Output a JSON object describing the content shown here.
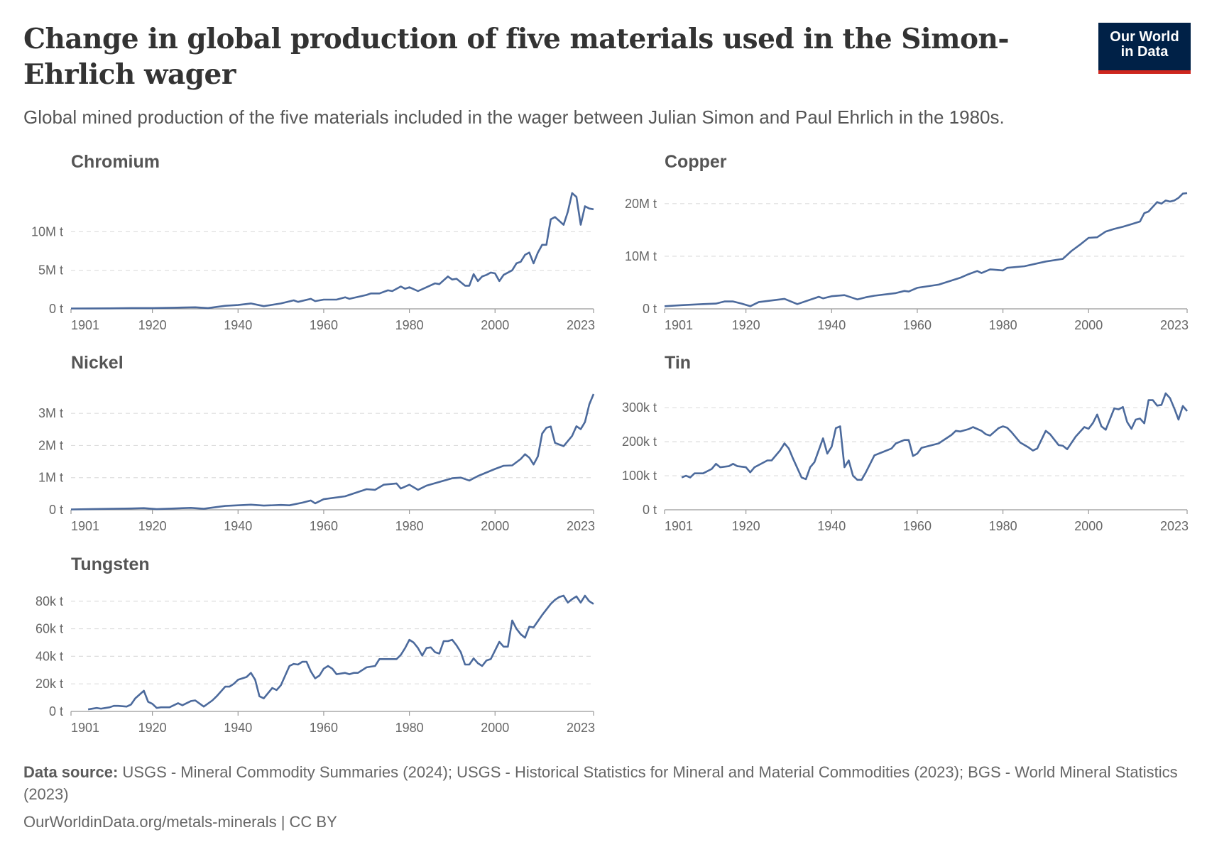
{
  "header": {
    "title": "Change in global production of five materials used in the Simon-Ehrlich wager",
    "subtitle": "Global mined production of the five materials included in the wager between Julian Simon and Paul Ehrlich in the 1980s.",
    "logo": "Our World in Data",
    "logo_line1": "Our World",
    "logo_line2": "in Data"
  },
  "footer": {
    "source_label": "Data source:",
    "source_text": " USGS - Mineral Commodity Summaries (2024); USGS - Historical Statistics for Mineral and Material Commodities (2023); BGS - World Mineral Statistics (2023)",
    "url": "OurWorldinData.org/metals-minerals | CC BY"
  },
  "colors": {
    "line": "#4c6a9c",
    "grid": "#dddddd",
    "logo_bg": "#002147",
    "logo_accent": "#ce261e"
  },
  "chart_data": [
    {
      "type": "line",
      "title": "Chromium",
      "unit": "t",
      "xlim": [
        1901,
        2023
      ],
      "ylim": [
        0,
        15000000
      ],
      "xticks": [
        "1901",
        "1920",
        "1940",
        "1960",
        "1980",
        "2000",
        "2023"
      ],
      "yticks": [
        {
          "value": 0,
          "label": "0 t"
        },
        {
          "value": 5000000,
          "label": "5M t"
        },
        {
          "value": 10000000,
          "label": "10M t"
        }
      ],
      "x": [
        1901,
        1910,
        1915,
        1920,
        1925,
        1930,
        1933,
        1937,
        1940,
        1943,
        1946,
        1950,
        1953,
        1954,
        1957,
        1958,
        1960,
        1963,
        1965,
        1966,
        1970,
        1971,
        1973,
        1975,
        1976,
        1978,
        1979,
        1980,
        1982,
        1984,
        1986,
        1987,
        1989,
        1990,
        1991,
        1993,
        1994,
        1995,
        1996,
        1997,
        1998,
        1999,
        2000,
        2001,
        2002,
        2004,
        2005,
        2006,
        2007,
        2008,
        2009,
        2010,
        2011,
        2012,
        2013,
        2014,
        2016,
        2017,
        2018,
        2019,
        2020,
        2021,
        2022,
        2023
      ],
      "y": [
        50000,
        60000,
        100000,
        100000,
        150000,
        200000,
        100000,
        400000,
        500000,
        700000,
        350000,
        700000,
        1100000,
        900000,
        1300000,
        1000000,
        1200000,
        1200000,
        1500000,
        1300000,
        1800000,
        2000000,
        2000000,
        2400000,
        2300000,
        2900000,
        2600000,
        2800000,
        2300000,
        2800000,
        3300000,
        3200000,
        4200000,
        3800000,
        3900000,
        3000000,
        3000000,
        4500000,
        3600000,
        4200000,
        4400000,
        4700000,
        4600000,
        3600000,
        4400000,
        5000000,
        5900000,
        6100000,
        7000000,
        7300000,
        5900000,
        7300000,
        8300000,
        8300000,
        11600000,
        11900000,
        10900000,
        12600000,
        15000000,
        14500000,
        10900000,
        13300000,
        13000000,
        12900000
      ]
    },
    {
      "type": "line",
      "title": "Copper",
      "unit": "t",
      "xlim": [
        1901,
        2023
      ],
      "ylim": [
        0,
        22000000
      ],
      "xticks": [
        "1901",
        "1920",
        "1940",
        "1960",
        "1980",
        "2000",
        "2023"
      ],
      "yticks": [
        {
          "value": 0,
          "label": "0 t"
        },
        {
          "value": 10000000,
          "label": "10M t"
        },
        {
          "value": 20000000,
          "label": "20M t"
        }
      ],
      "x": [
        1901,
        1905,
        1910,
        1913,
        1915,
        1917,
        1919,
        1921,
        1923,
        1925,
        1929,
        1932,
        1937,
        1938,
        1940,
        1943,
        1946,
        1948,
        1950,
        1955,
        1957,
        1958,
        1960,
        1965,
        1970,
        1972,
        1974,
        1975,
        1977,
        1980,
        1981,
        1985,
        1990,
        1994,
        1996,
        1998,
        2000,
        2002,
        2004,
        2006,
        2008,
        2010,
        2012,
        2013,
        2014,
        2016,
        2017,
        2018,
        2019,
        2020,
        2021,
        2022,
        2023
      ],
      "y": [
        500000,
        700000,
        900000,
        1000000,
        1400000,
        1400000,
        1000000,
        500000,
        1300000,
        1500000,
        1900000,
        900000,
        2300000,
        2000000,
        2400000,
        2600000,
        1800000,
        2200000,
        2500000,
        3000000,
        3400000,
        3300000,
        4000000,
        4600000,
        5900000,
        6600000,
        7200000,
        6800000,
        7500000,
        7300000,
        7800000,
        8100000,
        9000000,
        9500000,
        11000000,
        12200000,
        13500000,
        13600000,
        14700000,
        15200000,
        15600000,
        16100000,
        16600000,
        18200000,
        18500000,
        20300000,
        20000000,
        20600000,
        20400000,
        20600000,
        21100000,
        21900000,
        22000000
      ]
    },
    {
      "type": "line",
      "title": "Nickel",
      "unit": "t",
      "xlim": [
        1901,
        2023
      ],
      "ylim": [
        0,
        3600000
      ],
      "xticks": [
        "1901",
        "1920",
        "1940",
        "1960",
        "1980",
        "2000",
        "2023"
      ],
      "yticks": [
        {
          "value": 0,
          "label": "0 t"
        },
        {
          "value": 1000000,
          "label": "1M t"
        },
        {
          "value": 2000000,
          "label": "2M t"
        },
        {
          "value": 3000000,
          "label": "3M t"
        }
      ],
      "x": [
        1901,
        1915,
        1918,
        1921,
        1925,
        1929,
        1932,
        1937,
        1940,
        1943,
        1946,
        1950,
        1952,
        1955,
        1957,
        1958,
        1960,
        1965,
        1970,
        1972,
        1974,
        1977,
        1978,
        1980,
        1982,
        1984,
        1990,
        1992,
        1994,
        1996,
        2000,
        2002,
        2004,
        2006,
        2007,
        2008,
        2009,
        2010,
        2011,
        2012,
        2013,
        2014,
        2016,
        2018,
        2019,
        2020,
        2021,
        2022,
        2023
      ],
      "y": [
        10000,
        40000,
        50000,
        20000,
        40000,
        60000,
        30000,
        120000,
        140000,
        160000,
        130000,
        150000,
        140000,
        220000,
        290000,
        200000,
        330000,
        420000,
        640000,
        620000,
        780000,
        820000,
        660000,
        780000,
        620000,
        750000,
        980000,
        1000000,
        910000,
        1050000,
        1270000,
        1370000,
        1380000,
        1580000,
        1730000,
        1620000,
        1410000,
        1660000,
        2370000,
        2550000,
        2590000,
        2080000,
        1980000,
        2300000,
        2600000,
        2510000,
        2730000,
        3280000,
        3600000
      ]
    },
    {
      "type": "line",
      "title": "Tin",
      "unit": "t",
      "xlim": [
        1901,
        2023
      ],
      "ylim": [
        0,
        340000
      ],
      "xticks": [
        "1901",
        "1920",
        "1940",
        "1960",
        "1980",
        "2000",
        "2023"
      ],
      "yticks": [
        {
          "value": 0,
          "label": "0 t"
        },
        {
          "value": 100000,
          "label": "100k t"
        },
        {
          "value": 200000,
          "label": "200k t"
        },
        {
          "value": 300000,
          "label": "300k t"
        }
      ],
      "x": [
        1905,
        1906,
        1907,
        1908,
        1910,
        1912,
        1913,
        1914,
        1916,
        1917,
        1918,
        1920,
        1921,
        1922,
        1925,
        1926,
        1928,
        1929,
        1930,
        1931,
        1933,
        1934,
        1935,
        1936,
        1938,
        1939,
        1940,
        1941,
        1942,
        1943,
        1944,
        1945,
        1946,
        1947,
        1948,
        1950,
        1952,
        1954,
        1955,
        1957,
        1958,
        1959,
        1960,
        1961,
        1965,
        1968,
        1969,
        1970,
        1972,
        1973,
        1975,
        1976,
        1977,
        1979,
        1980,
        1981,
        1982,
        1984,
        1986,
        1987,
        1988,
        1990,
        1991,
        1993,
        1994,
        1995,
        1997,
        1999,
        2000,
        2001,
        2002,
        2003,
        2004,
        2006,
        2007,
        2008,
        2009,
        2010,
        2011,
        2012,
        2013,
        2014,
        2015,
        2016,
        2017,
        2018,
        2019,
        2020,
        2021,
        2022,
        2023
      ],
      "y": [
        95000,
        100000,
        95000,
        107000,
        107000,
        120000,
        135000,
        125000,
        128000,
        135000,
        128000,
        125000,
        110000,
        125000,
        145000,
        145000,
        175000,
        195000,
        180000,
        150000,
        95000,
        90000,
        125000,
        140000,
        210000,
        165000,
        185000,
        240000,
        245000,
        125000,
        145000,
        100000,
        88000,
        88000,
        110000,
        160000,
        170000,
        180000,
        195000,
        205000,
        205000,
        158000,
        165000,
        182000,
        195000,
        220000,
        232000,
        230000,
        237000,
        243000,
        232000,
        222000,
        218000,
        240000,
        245000,
        241000,
        228000,
        198000,
        183000,
        174000,
        180000,
        232000,
        222000,
        190000,
        188000,
        178000,
        215000,
        243000,
        238000,
        255000,
        280000,
        245000,
        235000,
        298000,
        295000,
        302000,
        258000,
        238000,
        265000,
        268000,
        254000,
        322000,
        322000,
        306000,
        308000,
        342000,
        328000,
        298000,
        265000,
        305000,
        290000
      ]
    },
    {
      "type": "line",
      "title": "Tungsten",
      "unit": "t",
      "xlim": [
        1901,
        2023
      ],
      "ylim": [
        0,
        84000
      ],
      "xticks": [
        "1901",
        "1920",
        "1940",
        "1960",
        "1980",
        "2000",
        "2023"
      ],
      "yticks": [
        {
          "value": 0,
          "label": "0 t"
        },
        {
          "value": 20000,
          "label": "20k t"
        },
        {
          "value": 40000,
          "label": "40k t"
        },
        {
          "value": 60000,
          "label": "60k t"
        },
        {
          "value": 80000,
          "label": "80k t"
        }
      ],
      "x": [
        1905,
        1907,
        1908,
        1910,
        1911,
        1912,
        1914,
        1915,
        1916,
        1918,
        1919,
        1920,
        1921,
        1922,
        1924,
        1926,
        1927,
        1929,
        1930,
        1932,
        1934,
        1935,
        1937,
        1938,
        1939,
        1940,
        1942,
        1943,
        1944,
        1945,
        1946,
        1948,
        1949,
        1950,
        1952,
        1953,
        1954,
        1955,
        1956,
        1957,
        1958,
        1959,
        1960,
        1961,
        1962,
        1963,
        1965,
        1966,
        1967,
        1968,
        1970,
        1972,
        1973,
        1975,
        1977,
        1978,
        1979,
        1980,
        1981,
        1982,
        1983,
        1984,
        1985,
        1986,
        1987,
        1988,
        1989,
        1990,
        1991,
        1992,
        1993,
        1994,
        1995,
        1996,
        1997,
        1998,
        1999,
        2001,
        2002,
        2003,
        2004,
        2005,
        2006,
        2007,
        2008,
        2009,
        2011,
        2012,
        2013,
        2014,
        2015,
        2016,
        2017,
        2018,
        2019,
        2020,
        2021,
        2022,
        2023
      ],
      "y": [
        1500,
        2500,
        2000,
        3000,
        4000,
        4000,
        3500,
        5000,
        9500,
        15000,
        7000,
        5500,
        2500,
        3000,
        3000,
        6000,
        4500,
        7500,
        8000,
        3500,
        8000,
        11000,
        18000,
        18000,
        20000,
        23000,
        25000,
        28000,
        23000,
        11000,
        9500,
        17000,
        15500,
        19000,
        33000,
        34500,
        34000,
        36000,
        36000,
        29000,
        24000,
        26000,
        31000,
        33000,
        31000,
        27000,
        28000,
        27000,
        28000,
        28000,
        32000,
        33000,
        38000,
        38000,
        38000,
        41000,
        46000,
        52000,
        50000,
        46000,
        40500,
        46000,
        46500,
        43000,
        42000,
        51000,
        51000,
        52000,
        48000,
        43000,
        34000,
        34000,
        38500,
        35000,
        33000,
        37000,
        38000,
        50500,
        47000,
        47000,
        66000,
        60000,
        56000,
        53500,
        61500,
        61000,
        70000,
        74000,
        78000,
        81000,
        83000,
        84000,
        79000,
        81500,
        83500,
        79000,
        84000,
        80000,
        78000
      ]
    }
  ]
}
